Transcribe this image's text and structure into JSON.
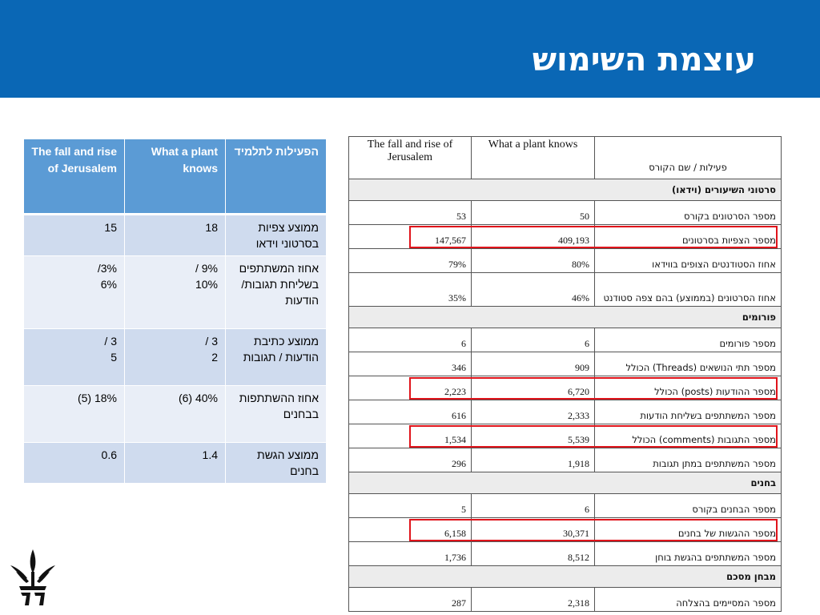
{
  "header": {
    "title": "עוצמת השימוש"
  },
  "summary_table": {
    "columns": [
      "The fall and rise of Jerusalem",
      "What a plant knows",
      "הפעילות לתלמיד"
    ],
    "rows": [
      {
        "jerusalem": "15",
        "plant": "18",
        "label": "ממוצע צפיות בסרטוני וידאו"
      },
      {
        "jerusalem": "/3%\n6%",
        "plant": "/ 9%\n10%",
        "label": "אחוז המשתתפים בשליחת תגובות/ הודעות"
      },
      {
        "jerusalem": "/ 3\n5",
        "plant": "/ 3\n2",
        "label": "ממוצע כתיבת הודעות / תגובות"
      },
      {
        "jerusalem": "(5) 18%",
        "plant": "(6) 40%",
        "label": "אחוז ההשתתפות בבחנים"
      },
      {
        "jerusalem": "0.6",
        "plant": "1.4",
        "label": "ממוצע הגשת בחנים"
      }
    ]
  },
  "detail_table": {
    "columns": [
      "The fall and rise of Jerusalem",
      "What a plant knows",
      "פעילות / שם הקורס"
    ],
    "rows": [
      {
        "type": "section",
        "label": "סרטוני השיעורים (וידאו)"
      },
      {
        "type": "row",
        "jerusalem": "53",
        "plant": "50",
        "label": "מספר הסרטונים בקורס"
      },
      {
        "type": "row",
        "jerusalem": "147,567",
        "plant": "409,193",
        "label": "מספר הצפיות בסרטונים",
        "highlight": true
      },
      {
        "type": "row",
        "jerusalem": "79%",
        "plant": "80%",
        "label": "אחוז הסטודנטים הצופים בווידאו"
      },
      {
        "type": "row",
        "tall": true,
        "jerusalem": "35%",
        "plant": "46%",
        "label": "אחוז הסרטונים (בממוצע) בהם צפה סטודנט"
      },
      {
        "type": "section",
        "label": "פורומים"
      },
      {
        "type": "row",
        "jerusalem": "6",
        "plant": "6",
        "label": "מספר פורומים"
      },
      {
        "type": "row",
        "jerusalem": "346",
        "plant": "909",
        "label": "מספר תתי הנושאים (Threads) הכולל"
      },
      {
        "type": "row",
        "jerusalem": "2,223",
        "plant": "6,720",
        "label": "מספר ההודעות (posts) הכולל",
        "highlight": true
      },
      {
        "type": "row",
        "jerusalem": "616",
        "plant": "2,333",
        "label": "מספר המשתתפים בשליחת הודעות"
      },
      {
        "type": "row",
        "jerusalem": "1,534",
        "plant": "5,539",
        "label": "מספר התגובות (comments) הכולל",
        "highlight": true
      },
      {
        "type": "row",
        "jerusalem": "296",
        "plant": "1,918",
        "label": "מספר המשתתפים במתן תגובות"
      },
      {
        "type": "section",
        "label": "בחנים"
      },
      {
        "type": "row",
        "jerusalem": "5",
        "plant": "6",
        "label": "מספר הבחנים בקורס"
      },
      {
        "type": "row",
        "jerusalem": "6,158",
        "plant": "30,371",
        "label": "מספר ההגשות של בחנים",
        "highlight": true
      },
      {
        "type": "row",
        "jerusalem": "1,736",
        "plant": "8,512",
        "label": "מספר המשתתפים בהגשת בוחן"
      },
      {
        "type": "section",
        "label": "מבחן מסכם"
      },
      {
        "type": "row",
        "jerusalem": "287",
        "plant": "2,318",
        "label": "מספר המסיימים בהצלחה"
      }
    ]
  },
  "logo": {
    "icon": "tel-aviv-university-logo"
  },
  "colors": {
    "header_bg": "#0a67b5",
    "table_header": "#5b9bd5",
    "row_odd": "#cfdbee",
    "row_even": "#e9eef7",
    "highlight": "#e0141b"
  }
}
